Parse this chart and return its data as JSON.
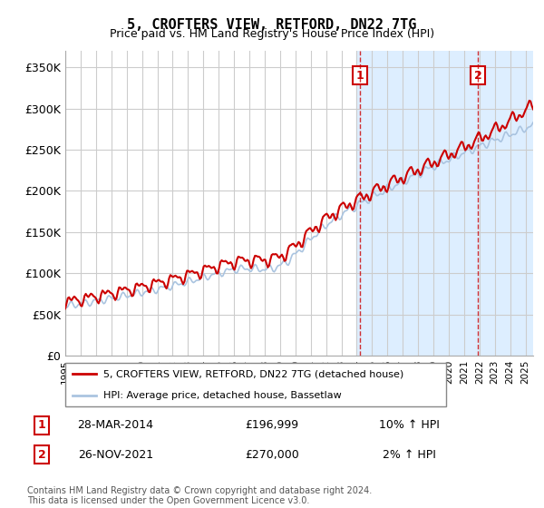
{
  "title": "5, CROFTERS VIEW, RETFORD, DN22 7TG",
  "subtitle": "Price paid vs. HM Land Registry's House Price Index (HPI)",
  "ylabel_ticks": [
    "£0",
    "£50K",
    "£100K",
    "£150K",
    "£200K",
    "£250K",
    "£300K",
    "£350K"
  ],
  "ytick_vals": [
    0,
    50000,
    100000,
    150000,
    200000,
    250000,
    300000,
    350000
  ],
  "ylim": [
    0,
    370000
  ],
  "xlim_start": 1995.0,
  "xlim_end": 2025.5,
  "hpi_color": "#aac4e0",
  "price_color": "#cc0000",
  "marker1_date": 2014.23,
  "marker1_price": 196999,
  "marker1_label": "1",
  "marker2_date": 2021.9,
  "marker2_price": 270000,
  "marker2_label": "2",
  "legend_line1": "5, CROFTERS VIEW, RETFORD, DN22 7TG (detached house)",
  "legend_line2": "HPI: Average price, detached house, Bassetlaw",
  "table_row1_num": "1",
  "table_row1_date": "28-MAR-2014",
  "table_row1_price": "£196,999",
  "table_row1_hpi": "10% ↑ HPI",
  "table_row2_num": "2",
  "table_row2_date": "26-NOV-2021",
  "table_row2_price": "£270,000",
  "table_row2_hpi": "2% ↑ HPI",
  "footer": "Contains HM Land Registry data © Crown copyright and database right 2024.\nThis data is licensed under the Open Government Licence v3.0.",
  "bg_color": "#ffffff",
  "shaded_region_start": 2014.0,
  "shaded_region_end": 2025.5,
  "shaded_color": "#ddeeff"
}
